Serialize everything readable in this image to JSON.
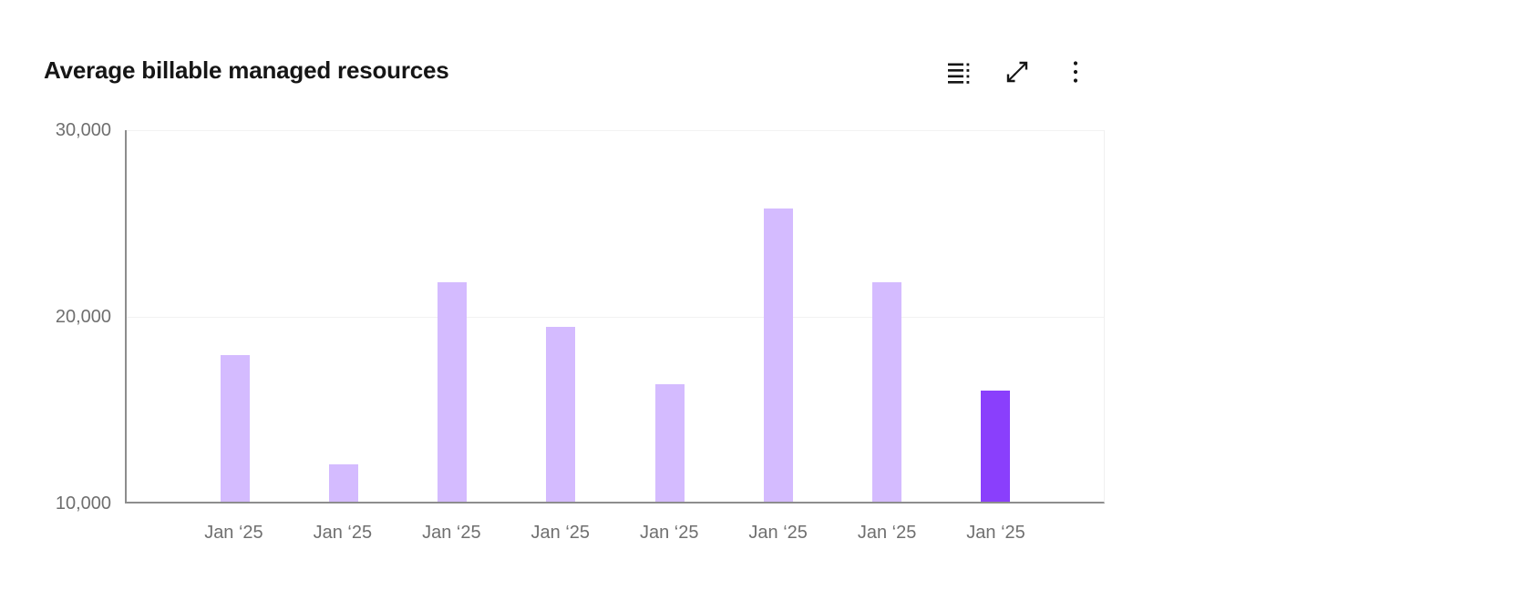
{
  "header": {
    "title": "Average billable managed resources",
    "toolbar": [
      {
        "name": "show-data-table",
        "icon": "data-table-icon"
      },
      {
        "name": "expand-chart",
        "icon": "expand-icon"
      },
      {
        "name": "chart-options",
        "icon": "overflow-menu-icon"
      }
    ]
  },
  "chart_data": {
    "type": "bar",
    "title": "Average billable managed resources",
    "categories": [
      "Jan ‘25",
      "Jan ‘25",
      "Jan ‘25",
      "Jan ‘25",
      "Jan ‘25",
      "Jan ‘25",
      "Jan ‘25",
      "Jan ‘25"
    ],
    "values": [
      17900,
      12000,
      21800,
      19400,
      16300,
      25800,
      21800,
      16000
    ],
    "highlighted_index": 7,
    "xlabel": "",
    "ylabel": "",
    "ylim": [
      10000,
      30000
    ],
    "yticks": [
      {
        "label": "30,000",
        "value": 30000
      },
      {
        "label": "20,000",
        "value": 20000
      },
      {
        "label": "10,000",
        "value": 10000
      }
    ],
    "grid": "horizontal-light",
    "legend_position": "none",
    "colors": {
      "bar": "#d4bbff",
      "highlighted_bar": "#8a3ffc",
      "axis_line": "#8d8d8d",
      "gridline": "#f2f2f2",
      "tick_text": "#6f6f6f",
      "title_text": "#161616"
    }
  }
}
